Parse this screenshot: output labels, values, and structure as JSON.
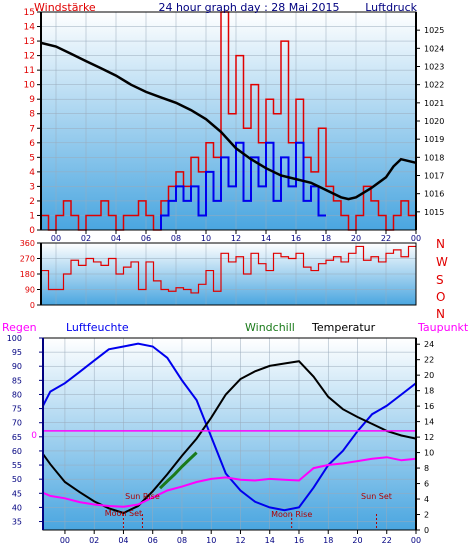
{
  "colors": {
    "pressure": "#000000",
    "wind": "#e00000",
    "gust": "#0000ee",
    "direction": "#e00000",
    "humidity": "#0000ee",
    "temperature": "#000000",
    "windchill": "#1a7a1a",
    "dewpoint": "#ff00ff",
    "rain": "#ff00ff",
    "moon_sun": "#b00000",
    "label_dark_blue": "#000080",
    "panel_top": "#ffffff",
    "panel_bottom": "#4aa6e0"
  },
  "chart_data": [
    {
      "type": "line",
      "title": "24 hour graph day : 28 Mai 2015",
      "left_axis_label": "Windstärke",
      "right_axis_label": "Luftdruck",
      "x_ticks": [
        "00",
        "02",
        "04",
        "06",
        "08",
        "10",
        "12",
        "14",
        "16",
        "18",
        "20",
        "22",
        "00"
      ],
      "x_range_hours": [
        -1,
        24
      ],
      "left_ylim": [
        0,
        15
      ],
      "left_ticks": [
        "0",
        "1",
        "2",
        "3",
        "4",
        "5",
        "6",
        "7",
        "8",
        "9",
        "10",
        "11",
        "12",
        "13",
        "14",
        "15"
      ],
      "right_ylim": [
        1014,
        1026
      ],
      "right_ticks": [
        "1015",
        "1016",
        "1017",
        "1018",
        "1019",
        "1020",
        "1021",
        "1022",
        "1023",
        "1024",
        "1025"
      ],
      "series": [
        {
          "name": "Luftdruck",
          "axis": "right",
          "x": [
            -1,
            0,
            1,
            2,
            3,
            4,
            5,
            6,
            7,
            8,
            9,
            10,
            11,
            12,
            13,
            14,
            15,
            16,
            17,
            18,
            19,
            19.5,
            20,
            21,
            22,
            22.5,
            23,
            24
          ],
          "y": [
            1024.3,
            1024.1,
            1023.7,
            1023.3,
            1022.9,
            1022.5,
            1022.0,
            1021.6,
            1021.3,
            1021.0,
            1020.6,
            1020.1,
            1019.4,
            1018.5,
            1017.9,
            1017.4,
            1017.0,
            1016.8,
            1016.6,
            1016.2,
            1015.8,
            1015.7,
            1015.8,
            1016.3,
            1016.9,
            1017.5,
            1017.9,
            1017.7
          ]
        },
        {
          "name": "Wind",
          "axis": "left",
          "x": [
            -1,
            -0.5,
            0,
            0.5,
            1,
            1.5,
            2,
            2.5,
            3,
            3.5,
            4,
            4.5,
            5,
            5.5,
            6,
            6.5,
            7,
            7.5,
            8,
            8.5,
            9,
            9.5,
            10,
            10.5,
            11,
            11.5,
            12,
            12.5,
            13,
            13.5,
            14,
            14.5,
            15,
            15.5,
            16,
            16.5,
            17,
            17.5,
            18,
            18.5,
            19,
            19.5,
            20,
            20.5,
            21,
            21.5,
            22,
            22.5,
            23,
            23.5
          ],
          "y": [
            1,
            0,
            1,
            2,
            1,
            0,
            1,
            1,
            2,
            1,
            0,
            1,
            1,
            2,
            1,
            0,
            2,
            3,
            4,
            3,
            5,
            4,
            6,
            5,
            15,
            8,
            12,
            7,
            10,
            6,
            9,
            8,
            13,
            6,
            9,
            5,
            4,
            7,
            3,
            2,
            1,
            0,
            1,
            3,
            2,
            1,
            0,
            1,
            2,
            1
          ]
        },
        {
          "name": "Böen",
          "axis": "left",
          "x": [
            7,
            7.5,
            8,
            8.5,
            9,
            9.5,
            10,
            10.5,
            11,
            11.5,
            12,
            12.5,
            13,
            13.5,
            14,
            14.5,
            15,
            15.5,
            16,
            16.5,
            17,
            17.5
          ],
          "y": [
            1,
            2,
            3,
            2,
            3,
            1,
            4,
            2,
            5,
            3,
            6,
            2,
            5,
            3,
            6,
            2,
            5,
            3,
            6,
            2,
            3,
            1
          ]
        }
      ]
    },
    {
      "type": "line",
      "left_ticks": [
        "0",
        "90",
        "180",
        "270",
        "360"
      ],
      "left_ylim": [
        0,
        360
      ],
      "compass_labels": [
        "N",
        "W",
        "S",
        "O",
        "N"
      ],
      "series": [
        {
          "name": "Windrichtung",
          "x": [
            -1,
            -0.5,
            0,
            0.5,
            1,
            1.5,
            2,
            2.5,
            3,
            3.5,
            4,
            4.5,
            5,
            5.5,
            6,
            6.5,
            7,
            7.5,
            8,
            8.5,
            9,
            9.5,
            10,
            10.5,
            11,
            11.5,
            12,
            12.5,
            13,
            13.5,
            14,
            14.5,
            15,
            15.5,
            16,
            16.5,
            17,
            17.5,
            18,
            18.5,
            19,
            19.5,
            20,
            20.5,
            21,
            21.5,
            22,
            22.5,
            23,
            23.5
          ],
          "y": [
            200,
            90,
            90,
            180,
            260,
            230,
            270,
            250,
            230,
            270,
            180,
            220,
            250,
            90,
            250,
            140,
            90,
            80,
            100,
            90,
            70,
            120,
            200,
            80,
            300,
            250,
            280,
            180,
            300,
            240,
            200,
            300,
            280,
            270,
            300,
            220,
            200,
            240,
            260,
            280,
            250,
            300,
            340,
            260,
            280,
            250,
            300,
            320,
            280,
            340
          ]
        }
      ]
    },
    {
      "type": "line",
      "legend": [
        "Regen",
        "Luftfeuchte",
        "Windchill",
        "Temperatur",
        "Taupunkt"
      ],
      "x_ticks": [
        "00",
        "02",
        "04",
        "06",
        "08",
        "10",
        "12",
        "14",
        "16",
        "18",
        "20",
        "22",
        "00"
      ],
      "left_ylim": [
        32,
        100
      ],
      "left_ticks": [
        "35",
        "40",
        "45",
        "50",
        "55",
        "60",
        "65",
        "70",
        "75",
        "80",
        "85",
        "90",
        "95",
        "100"
      ],
      "right_ylim": [
        0,
        24.8
      ],
      "right_ticks": [
        "0",
        "2",
        "4",
        "6",
        "8",
        "10",
        "12",
        "14",
        "16",
        "18",
        "20",
        "22",
        "24"
      ],
      "rain_label": "0",
      "annotations": [
        {
          "text": "Moon Set",
          "x": 4
        },
        {
          "text": "Sun Rise",
          "x": 5.3
        },
        {
          "text": "Moon Rise",
          "x": 15.5
        },
        {
          "text": "Sun Set",
          "x": 21.3
        }
      ],
      "series": [
        {
          "name": "Luftfeuchte",
          "axis": "left",
          "x": [
            -1.5,
            -1,
            0,
            1,
            2,
            3,
            4,
            5,
            6,
            7,
            8,
            9,
            10,
            11,
            12,
            13,
            14,
            15,
            16,
            17,
            18,
            19,
            20,
            21,
            22,
            23,
            24
          ],
          "y": [
            76,
            81,
            84,
            88,
            92,
            96,
            97,
            98,
            97,
            93,
            85,
            78,
            65,
            52,
            46,
            42,
            40,
            39,
            40,
            47,
            55,
            60,
            67,
            73,
            76,
            80,
            84
          ]
        },
        {
          "name": "Temperatur",
          "axis": "right",
          "x": [
            -1.5,
            -1,
            0,
            1,
            2,
            3,
            4,
            5,
            6,
            7,
            8,
            9,
            10,
            11,
            12,
            13,
            14,
            15,
            16,
            17,
            18,
            19,
            20,
            21,
            22,
            23,
            24
          ],
          "y": [
            9.8,
            8.5,
            6.2,
            4.9,
            3.7,
            2.8,
            2.2,
            3.1,
            5.0,
            7.2,
            9.6,
            11.8,
            14.5,
            17.5,
            19.5,
            20.5,
            21.2,
            21.5,
            21.8,
            19.8,
            17.2,
            15.6,
            14.6,
            13.7,
            12.8,
            12.2,
            11.8
          ]
        },
        {
          "name": "Windchill",
          "axis": "right",
          "x": [
            6.5,
            7,
            7.5,
            8,
            8.5,
            9
          ],
          "y": [
            5.4,
            6.3,
            7.2,
            8.2,
            9.1,
            10.0
          ]
        },
        {
          "name": "Taupunkt",
          "axis": "right",
          "x": [
            -1.5,
            -1,
            0,
            1,
            2,
            3,
            4,
            5,
            6,
            7,
            8,
            9,
            10,
            11,
            12,
            13,
            14,
            15,
            16,
            17,
            18,
            19,
            20,
            21,
            22,
            23,
            24
          ],
          "y": [
            4.8,
            4.4,
            4.1,
            3.6,
            3.3,
            3.1,
            3.0,
            3.3,
            4.2,
            5.1,
            5.6,
            6.2,
            6.6,
            6.8,
            6.5,
            6.4,
            6.6,
            6.5,
            6.4,
            8.0,
            8.4,
            8.6,
            8.9,
            9.2,
            9.4,
            9.0,
            9.2
          ]
        },
        {
          "name": "Regen",
          "axis": "right",
          "x": [
            -1.5,
            24
          ],
          "y": [
            12.8,
            12.8
          ]
        }
      ]
    }
  ]
}
